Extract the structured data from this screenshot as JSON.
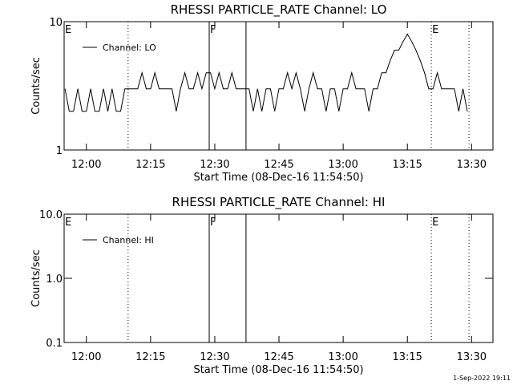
{
  "chart_data": [
    {
      "type": "line",
      "title": "RHESSI PARTICLE_RATE Channel: LO",
      "xlabel": "Start Time (08-Dec-16 11:54:50)",
      "ylabel": "Counts/sec",
      "log_y": true,
      "legend": "upper left",
      "xlim": [
        714.8,
        815
      ],
      "ylim": [
        1,
        10
      ],
      "xticks": [
        {
          "value": 720,
          "label": "12:00"
        },
        {
          "value": 735,
          "label": "12:15"
        },
        {
          "value": 750,
          "label": "12:30"
        },
        {
          "value": 765,
          "label": "12:45"
        },
        {
          "value": 780,
          "label": "13:00"
        },
        {
          "value": 795,
          "label": "13:15"
        },
        {
          "value": 810,
          "label": "13:30"
        }
      ],
      "yticks": [
        1,
        10
      ],
      "x": [
        715,
        716,
        717,
        718,
        719,
        720,
        721,
        722,
        723,
        724,
        725,
        726,
        727,
        728,
        729,
        730,
        731,
        732,
        733,
        734,
        735,
        736,
        737,
        738,
        739,
        740,
        741,
        742,
        743,
        744,
        745,
        746,
        747,
        748,
        749,
        750,
        751,
        752,
        753,
        754,
        755,
        756,
        757,
        758,
        759,
        760,
        761,
        762,
        763,
        764,
        765,
        766,
        767,
        768,
        769,
        770,
        771,
        772,
        773,
        774,
        775,
        776,
        777,
        778,
        779,
        780,
        781,
        782,
        783,
        784,
        785,
        786,
        787,
        788,
        789,
        790,
        791,
        792,
        793,
        794,
        795,
        796,
        797,
        798,
        799,
        800,
        801,
        802,
        803,
        804,
        805,
        806,
        807,
        808,
        809
      ],
      "series": [
        {
          "name": "Channel: LO",
          "color": "#000000",
          "values": [
            3,
            2,
            2,
            3,
            2,
            2,
            3,
            2,
            2,
            3,
            2,
            3,
            2,
            2,
            3,
            3,
            3,
            3,
            4,
            3,
            3,
            4,
            3,
            3,
            3,
            3,
            2,
            3,
            4,
            3,
            3,
            4,
            3,
            4,
            4,
            3,
            4,
            3,
            3,
            4,
            3,
            3,
            3,
            3,
            2,
            3,
            2,
            3,
            3,
            2,
            3,
            3,
            4,
            3,
            4,
            3,
            2,
            3,
            4,
            3,
            3,
            2,
            3,
            3,
            2,
            3,
            3,
            4,
            3,
            3,
            3,
            2,
            3,
            3,
            4,
            4,
            5,
            6,
            6,
            7,
            8,
            7,
            6,
            5,
            4,
            3,
            3,
            4,
            3,
            3,
            3,
            3,
            2,
            3,
            2
          ]
        }
      ],
      "markers": [
        {
          "x": 729.75,
          "style": "dotted"
        },
        {
          "x": 748.7,
          "style": "solid"
        },
        {
          "x": 757.3,
          "style": "solid"
        },
        {
          "x": 800.6,
          "style": "dotted"
        },
        {
          "x": 809.4,
          "style": "dotted"
        }
      ],
      "annotations": [
        {
          "text": "E",
          "x": 714.8
        },
        {
          "text": "F",
          "x": 748.7
        },
        {
          "text": "E",
          "x": 800.6
        }
      ]
    },
    {
      "type": "line",
      "title": "RHESSI PARTICLE_RATE Channel: HI",
      "xlabel": "Start Time (08-Dec-16 11:54:50)",
      "ylabel": "Counts/sec",
      "log_y": true,
      "legend": "upper left",
      "xlim": [
        714.8,
        815
      ],
      "ylim": [
        0.1,
        10
      ],
      "xticks": [
        {
          "value": 720,
          "label": "12:00"
        },
        {
          "value": 735,
          "label": "12:15"
        },
        {
          "value": 750,
          "label": "12:30"
        },
        {
          "value": 765,
          "label": "12:45"
        },
        {
          "value": 780,
          "label": "13:00"
        },
        {
          "value": 795,
          "label": "13:15"
        },
        {
          "value": 810,
          "label": "13:30"
        }
      ],
      "yticks": [
        0.1,
        {
          "value": 1,
          "label": "1.0"
        },
        {
          "value": 10,
          "label": "10.0"
        }
      ],
      "x": [],
      "series": [
        {
          "name": "Channel: HI",
          "color": "#000000",
          "values": []
        }
      ],
      "markers": [
        {
          "x": 729.75,
          "style": "dotted"
        },
        {
          "x": 748.7,
          "style": "solid"
        },
        {
          "x": 757.3,
          "style": "solid"
        },
        {
          "x": 800.6,
          "style": "dotted"
        },
        {
          "x": 809.4,
          "style": "dotted"
        }
      ],
      "annotations": [
        {
          "text": "E",
          "x": 714.8
        },
        {
          "text": "F",
          "x": 748.7
        },
        {
          "text": "E",
          "x": 800.6
        }
      ]
    }
  ],
  "footer": "1-Sep-2022 19:11"
}
